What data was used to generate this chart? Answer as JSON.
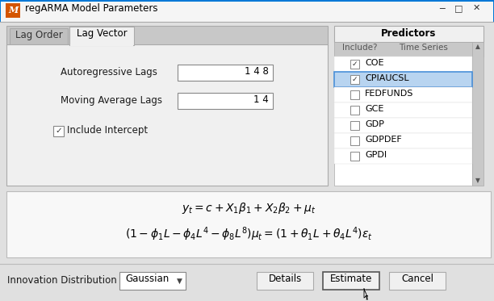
{
  "bg_color": "#e0e0e0",
  "dialog_bg": "#ececec",
  "title": "regARMA Model Parameters",
  "tab_active": "Lag Vector",
  "tab_inactive": "Lag Order",
  "ar_lags": "1 4 8",
  "ma_lags": "1 4",
  "predictors_header": "Predictors",
  "predictors_col1": "Include?",
  "predictors_col2": "Time Series",
  "predictors": [
    "COE",
    "CPIAUCSL",
    "FEDFUNDS",
    "GCE",
    "GDP",
    "GDPDEF",
    "GPDI"
  ],
  "checked_rows": [
    0,
    1
  ],
  "selected_row": 1,
  "selected_row_bg": "#b8d4f0",
  "selected_row_border": "#4a90d9",
  "eq_line1": "$y_t = c + X_1\\beta_1 + X_2\\beta_2 + \\mu_t$",
  "eq_line2": "$(1 - \\phi_1 L - \\phi_4 L^4 - \\phi_8 L^8)\\mu_t = (1 + \\theta_1 L + \\theta_4 L^4)\\varepsilon_t$",
  "innovation_label": "Innovation Distribution",
  "dropdown_label": "Gaussian",
  "btn_details": "Details",
  "btn_estimate": "Estimate",
  "btn_cancel": "Cancel",
  "matlab_orange": "#d45500",
  "title_bar_blue": "#0078d7",
  "tab_gray": "#c8c8c8",
  "panel_bg": "#f0f0f0",
  "input_bg": "#ffffff",
  "header_bg": "#c8c8c8",
  "scrollbar_bg": "#c8c8c8"
}
